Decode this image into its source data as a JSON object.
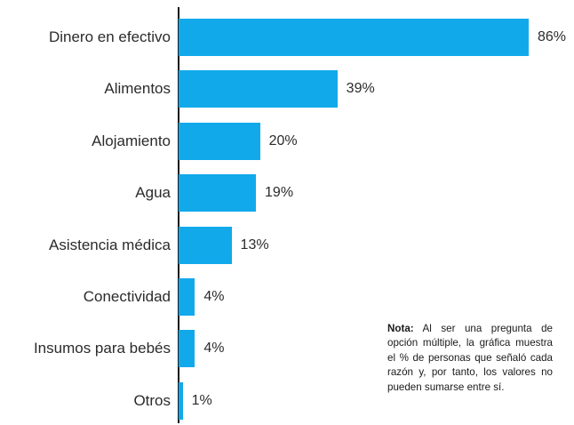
{
  "chart_data": {
    "type": "bar",
    "orientation": "horizontal",
    "categories": [
      "Dinero en efectivo",
      "Alimentos",
      "Alojamiento",
      "Agua",
      "Asistencia médica",
      "Conectividad",
      "Insumos para bebés",
      "Otros"
    ],
    "values": [
      86,
      39,
      20,
      19,
      13,
      4,
      4,
      1
    ],
    "value_labels": [
      "86%",
      "39%",
      "20%",
      "19%",
      "13%",
      "4%",
      "4%",
      "1%"
    ],
    "xlim": [
      0,
      86
    ],
    "grid": false,
    "bar_color": "#12a9ea"
  },
  "note": {
    "label": "Nota:",
    "text": "Al ser una pregunta de opción múltiple, la gráfica muestra el % de personas que señaló cada razón y, por tanto, los valores no pueden sumarse entre sí."
  }
}
